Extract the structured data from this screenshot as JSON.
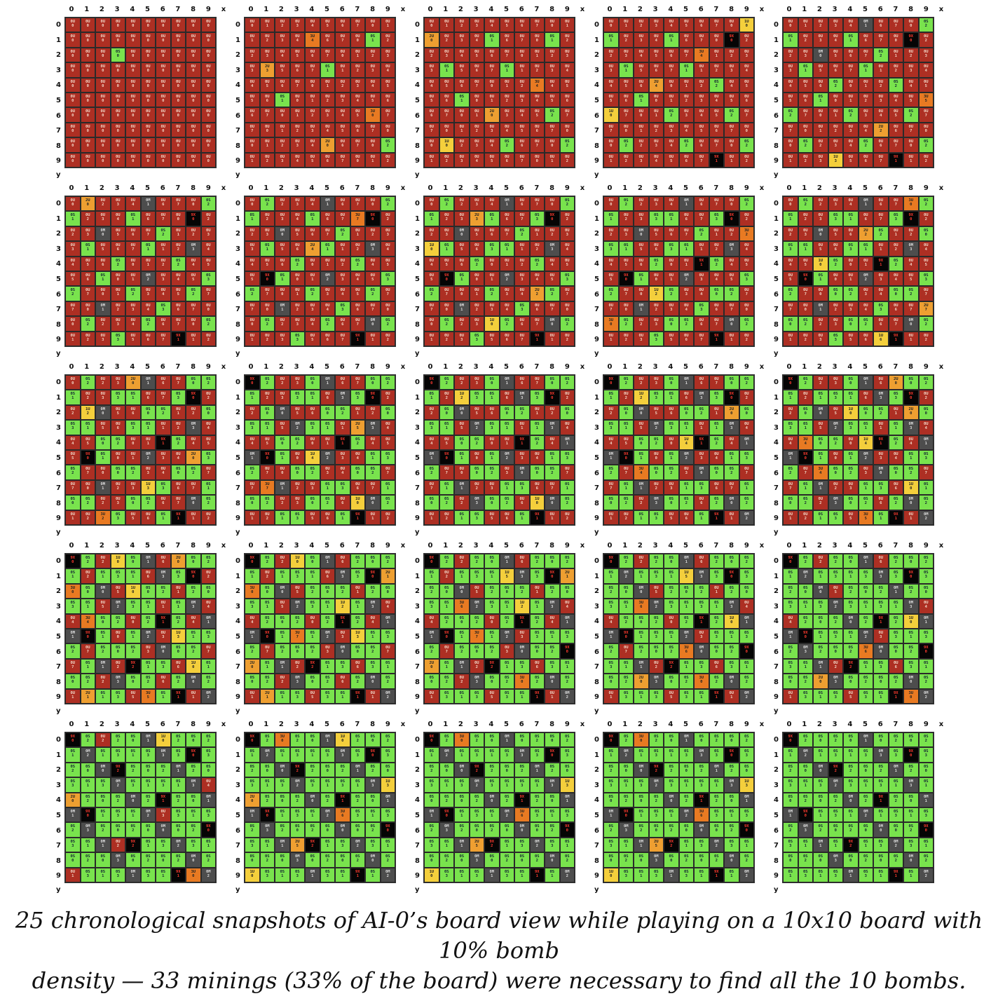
{
  "caption_line1": "25 chronological snapshots of  AI-0’s board view while playing on a 10x10 board with 10% bomb",
  "caption_line2": "density — 33 minings (33% of the board) were necessary to find all the 10 bombs.",
  "axis": {
    "x_label": "x",
    "y_label": "y",
    "ticks": [
      "0",
      "1",
      "2",
      "3",
      "4",
      "5",
      "6",
      "7",
      "8",
      "9"
    ]
  },
  "legend_codes": {
    "U": "unknown",
    "S": "safe",
    "M": "mined",
    "X": "bomb"
  },
  "colors": {
    "unknown": "#ad2f23",
    "safe": "#79e34d",
    "mined": "#4d4d4d",
    "bomb": "#050505",
    "prob_low": "#f4cf3c",
    "prob_mid": "#ee9f31",
    "prob_high": "#e87a22"
  },
  "snapshots": [
    {
      "index": 1
    },
    {
      "index": 2
    },
    {
      "index": 3
    },
    {
      "index": 4
    },
    {
      "index": 5
    },
    {
      "index": 6
    },
    {
      "index": 7
    },
    {
      "index": 8
    },
    {
      "index": 9
    },
    {
      "index": 10
    },
    {
      "index": 11
    },
    {
      "index": 12
    },
    {
      "index": 13
    },
    {
      "index": 14
    },
    {
      "index": 15
    },
    {
      "index": 16
    },
    {
      "index": 17
    },
    {
      "index": 18
    },
    {
      "index": 19
    },
    {
      "index": 20
    },
    {
      "index": 21
    },
    {
      "index": 22
    },
    {
      "index": 23
    },
    {
      "index": 24
    },
    {
      "index": 25
    }
  ]
}
